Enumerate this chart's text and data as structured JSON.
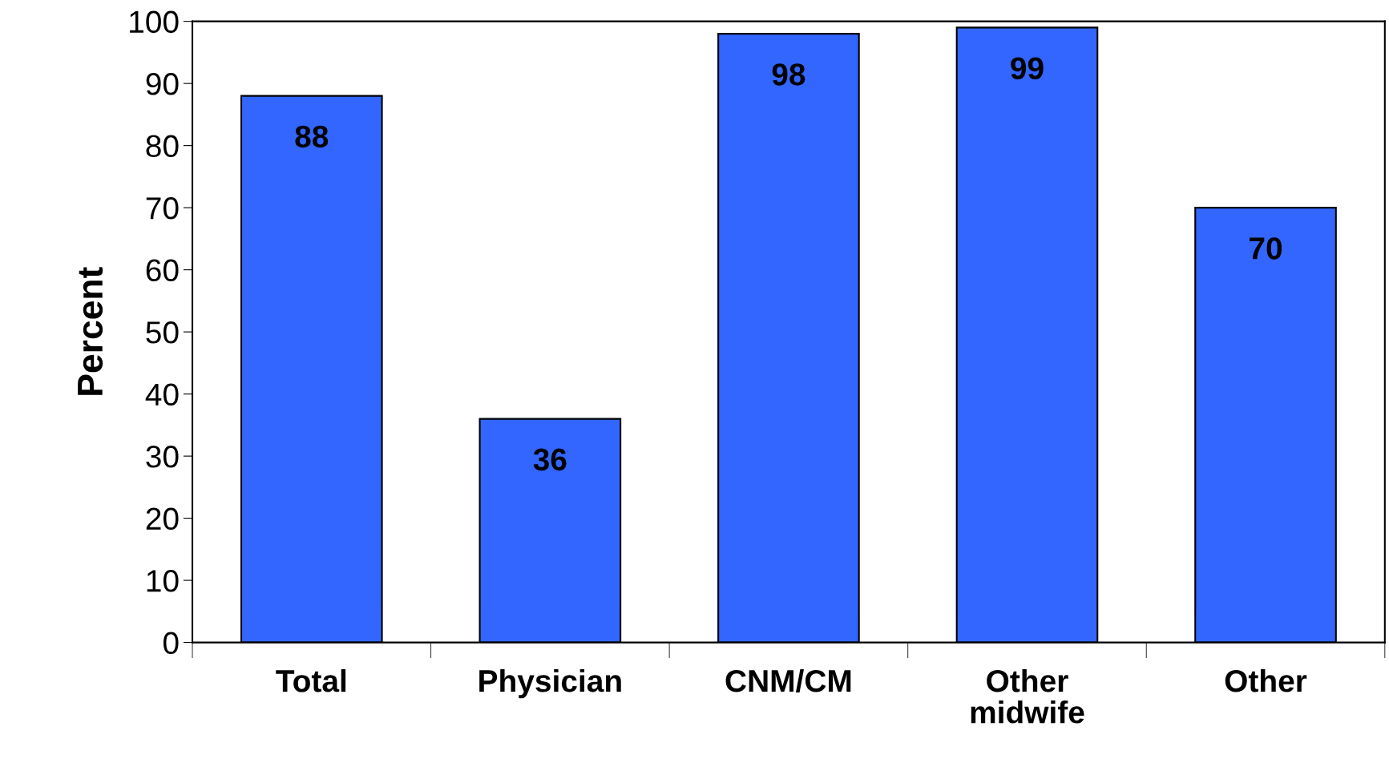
{
  "chart_data": {
    "type": "bar",
    "ylabel": "Percent",
    "categories": [
      "Total",
      "Physician",
      "CNM/CM",
      "Other\nmidwife",
      "Other"
    ],
    "values": [
      88,
      36,
      98,
      99,
      70
    ],
    "color": "#3366ff",
    "ylim": [
      0,
      100
    ],
    "yticks": [
      0,
      10,
      20,
      30,
      40,
      50,
      60,
      70,
      80,
      90,
      100
    ],
    "grid": false,
    "data_labels": true
  }
}
